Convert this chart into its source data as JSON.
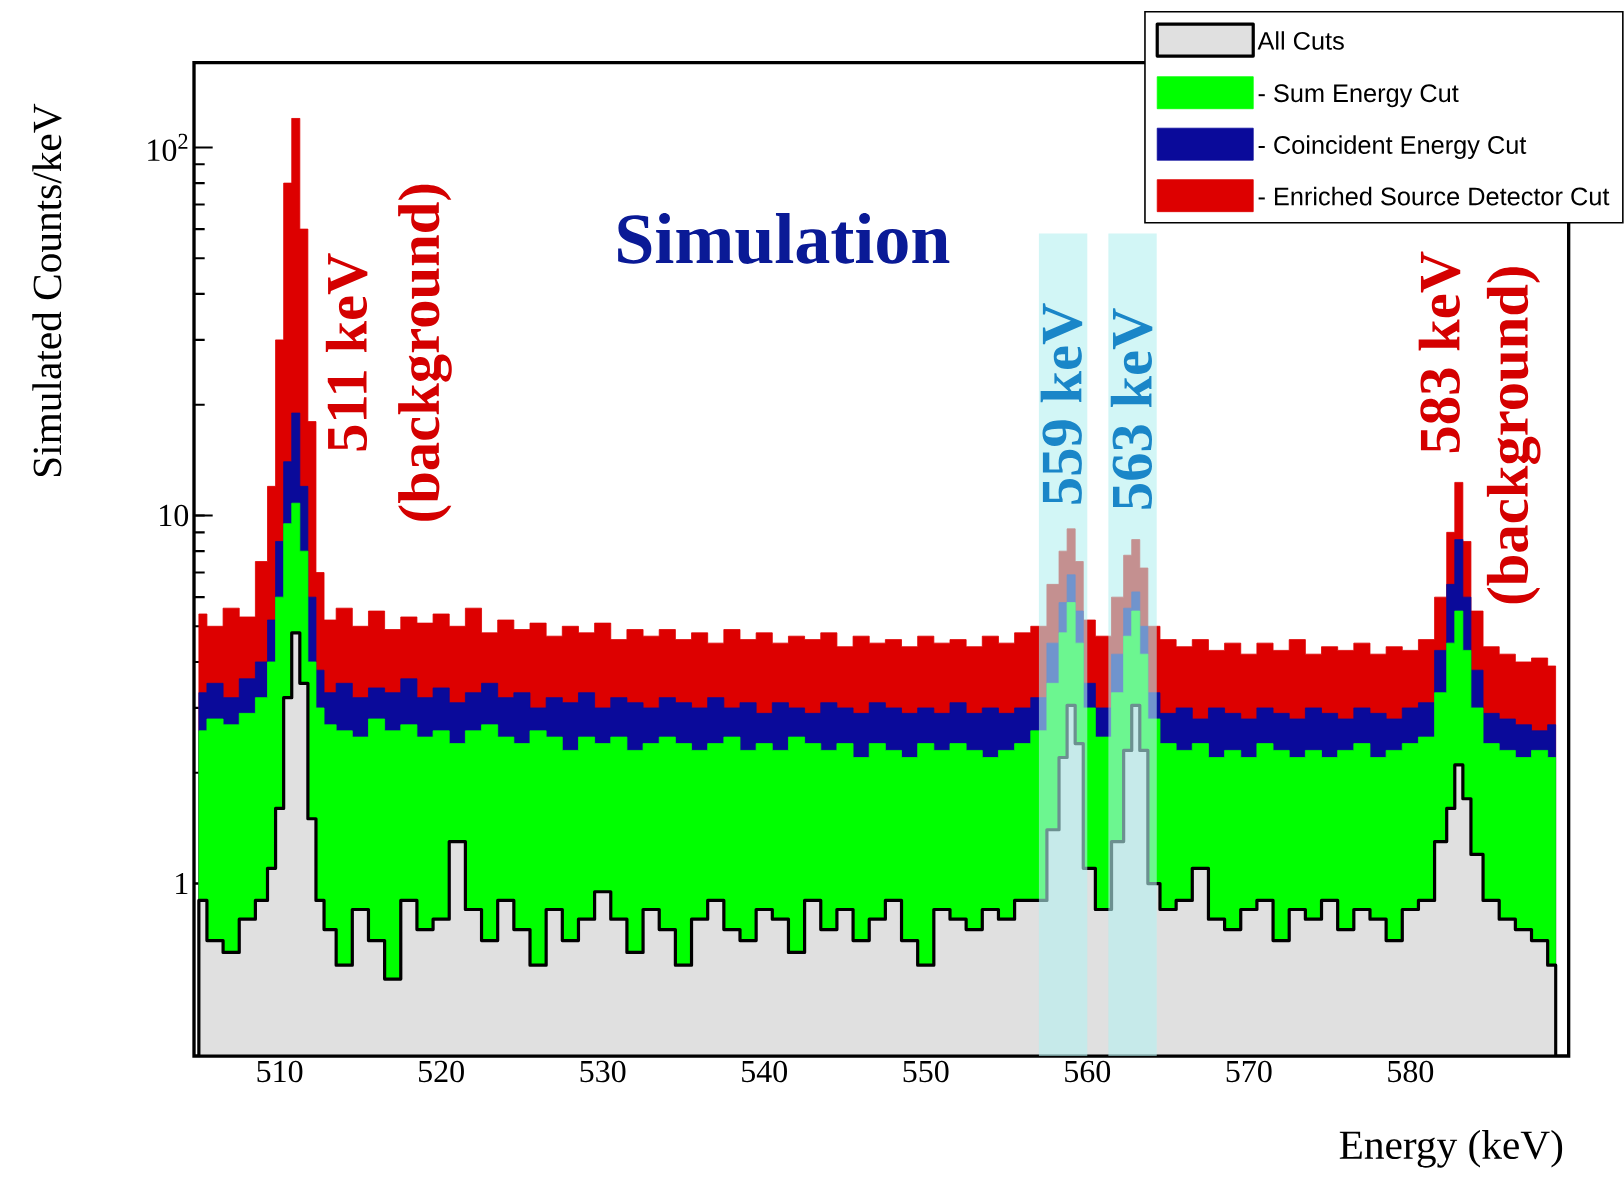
{
  "chart_data": {
    "type": "area",
    "xlabel": "Energy (keV)",
    "ylabel": "Simulated Counts/keV",
    "x": [
      505,
      506,
      507,
      508,
      509,
      509.5,
      510,
      510.5,
      511,
      511.5,
      512,
      512.5,
      513,
      514,
      515,
      516,
      517,
      518,
      519,
      520,
      521,
      522,
      523,
      524,
      525,
      526,
      527,
      528,
      529,
      530,
      531,
      532,
      533,
      534,
      535,
      536,
      537,
      538,
      539,
      540,
      541,
      542,
      543,
      544,
      545,
      546,
      547,
      548,
      549,
      550,
      551,
      552,
      553,
      554,
      555,
      556,
      557,
      558,
      558.5,
      559,
      559.5,
      560,
      561,
      562,
      562.5,
      563,
      563.5,
      564,
      565,
      566,
      567,
      568,
      569,
      570,
      571,
      572,
      573,
      574,
      575,
      576,
      577,
      578,
      579,
      580,
      581,
      582,
      582.5,
      583,
      583.5,
      584,
      585,
      586,
      587,
      588,
      589
    ],
    "series": [
      {
        "name": "All Cuts",
        "color": "#e0e0e0",
        "values": [
          0.9,
          0.7,
          0.65,
          0.8,
          0.9,
          1.1,
          1.6,
          3.2,
          4.8,
          3.5,
          1.5,
          0.9,
          0.75,
          0.6,
          0.85,
          0.7,
          0.55,
          0.9,
          0.75,
          0.8,
          1.3,
          0.85,
          0.7,
          0.9,
          0.75,
          0.6,
          0.85,
          0.7,
          0.8,
          0.95,
          0.8,
          0.65,
          0.85,
          0.75,
          0.6,
          0.8,
          0.9,
          0.75,
          0.7,
          0.85,
          0.8,
          0.65,
          0.9,
          0.75,
          0.85,
          0.7,
          0.8,
          0.9,
          0.7,
          0.6,
          0.85,
          0.8,
          0.75,
          0.85,
          0.8,
          0.9,
          0.9,
          1.4,
          2.2,
          3.05,
          2.4,
          1.1,
          0.85,
          1.3,
          2.3,
          3.05,
          2.3,
          1.0,
          0.85,
          0.9,
          1.1,
          0.8,
          0.75,
          0.85,
          0.9,
          0.7,
          0.85,
          0.8,
          0.9,
          0.75,
          0.85,
          0.8,
          0.7,
          0.85,
          0.9,
          1.3,
          1.6,
          2.1,
          1.7,
          1.2,
          0.9,
          0.8,
          0.75,
          0.7,
          0.6
        ]
      },
      {
        "name": "- Sum Energy Cut",
        "color": "#00ff00",
        "values": [
          2.6,
          2.8,
          2.7,
          2.9,
          3.2,
          4.0,
          6.0,
          9.5,
          10.8,
          8.0,
          4.0,
          3.0,
          2.7,
          2.6,
          2.5,
          2.8,
          2.6,
          2.7,
          2.5,
          2.6,
          2.4,
          2.6,
          2.7,
          2.5,
          2.4,
          2.6,
          2.5,
          2.3,
          2.5,
          2.4,
          2.5,
          2.3,
          2.4,
          2.5,
          2.4,
          2.3,
          2.4,
          2.5,
          2.3,
          2.4,
          2.3,
          2.5,
          2.4,
          2.3,
          2.4,
          2.2,
          2.4,
          2.3,
          2.2,
          2.4,
          2.3,
          2.4,
          2.3,
          2.2,
          2.3,
          2.4,
          2.6,
          3.5,
          4.8,
          5.8,
          4.5,
          3.0,
          2.5,
          3.3,
          4.7,
          5.5,
          4.2,
          2.8,
          2.4,
          2.3,
          2.4,
          2.2,
          2.3,
          2.2,
          2.4,
          2.3,
          2.2,
          2.3,
          2.2,
          2.3,
          2.4,
          2.2,
          2.3,
          2.4,
          2.5,
          3.3,
          4.5,
          5.5,
          4.3,
          3.0,
          2.4,
          2.3,
          2.2,
          2.3,
          2.2
        ]
      },
      {
        "name": "- Coincident Energy Cut",
        "color": "#0a0a9a",
        "values": [
          3.3,
          3.5,
          3.2,
          3.6,
          4.0,
          5.2,
          8.5,
          14,
          19,
          12,
          6.0,
          3.8,
          3.3,
          3.5,
          3.2,
          3.4,
          3.3,
          3.6,
          3.2,
          3.4,
          3.1,
          3.3,
          3.5,
          3.2,
          3.3,
          3.0,
          3.2,
          3.1,
          3.3,
          3.0,
          3.2,
          3.1,
          3.0,
          3.2,
          3.1,
          3.0,
          3.2,
          3.0,
          3.1,
          2.9,
          3.1,
          3.0,
          2.9,
          3.1,
          3.0,
          2.9,
          3.1,
          3.0,
          2.9,
          3.0,
          2.9,
          3.1,
          2.9,
          3.0,
          2.9,
          3.0,
          3.2,
          4.5,
          5.8,
          6.9,
          5.5,
          3.5,
          3.0,
          4.2,
          5.6,
          6.2,
          5.0,
          3.3,
          2.9,
          3.0,
          2.8,
          3.0,
          2.9,
          2.8,
          3.0,
          2.9,
          2.8,
          3.0,
          2.9,
          2.8,
          3.0,
          2.9,
          2.8,
          3.0,
          3.1,
          4.3,
          6.5,
          8.6,
          6.0,
          3.8,
          2.9,
          2.8,
          2.7,
          2.6,
          2.7
        ]
      },
      {
        "name": "- Enriched Source Detector Cut",
        "color": "#dd0000",
        "values": [
          5.4,
          5.0,
          5.6,
          5.3,
          7.5,
          12,
          30,
          80,
          120,
          60,
          18,
          7.0,
          5.2,
          5.6,
          5.0,
          5.5,
          4.9,
          5.3,
          5.1,
          5.4,
          5.0,
          5.6,
          4.8,
          5.2,
          4.9,
          5.1,
          4.7,
          5.0,
          4.8,
          5.1,
          4.6,
          4.9,
          4.7,
          4.9,
          4.6,
          4.8,
          4.5,
          4.9,
          4.6,
          4.8,
          4.5,
          4.7,
          4.6,
          4.8,
          4.4,
          4.7,
          4.5,
          4.6,
          4.4,
          4.7,
          4.5,
          4.6,
          4.4,
          4.7,
          4.5,
          4.8,
          5.0,
          6.5,
          8.0,
          9.2,
          7.5,
          5.2,
          4.7,
          6.0,
          7.8,
          8.6,
          7.2,
          5.0,
          4.6,
          4.4,
          4.6,
          4.3,
          4.5,
          4.2,
          4.5,
          4.3,
          4.6,
          4.2,
          4.4,
          4.3,
          4.5,
          4.2,
          4.4,
          4.3,
          4.6,
          6.0,
          9.0,
          12.3,
          8.5,
          5.5,
          4.4,
          4.2,
          4.0,
          4.1,
          3.9
        ]
      }
    ],
    "xlim": [
      504.7,
      589.8
    ],
    "ylim": [
      0.34,
      170
    ],
    "xticks": [
      510,
      520,
      530,
      540,
      550,
      560,
      570,
      580
    ],
    "yticks": [
      1,
      10,
      {
        "value": 100,
        "label": "10$^{2}$"
      }
    ],
    "log": "y",
    "grid": false,
    "legend": "top right",
    "marker": "none",
    "bands": [
      {
        "axis": "x",
        "from": 557,
        "to": 560,
        "color": "#b4f0f0"
      },
      {
        "axis": "x",
        "from": 561.3,
        "to": 564.3,
        "color": "#b4f0f0"
      }
    ],
    "annotations": [
      "511 keV",
      "(background)",
      "559 keV",
      "563 keV",
      "583 keV",
      "(background)",
      "Simulation"
    ]
  }
}
